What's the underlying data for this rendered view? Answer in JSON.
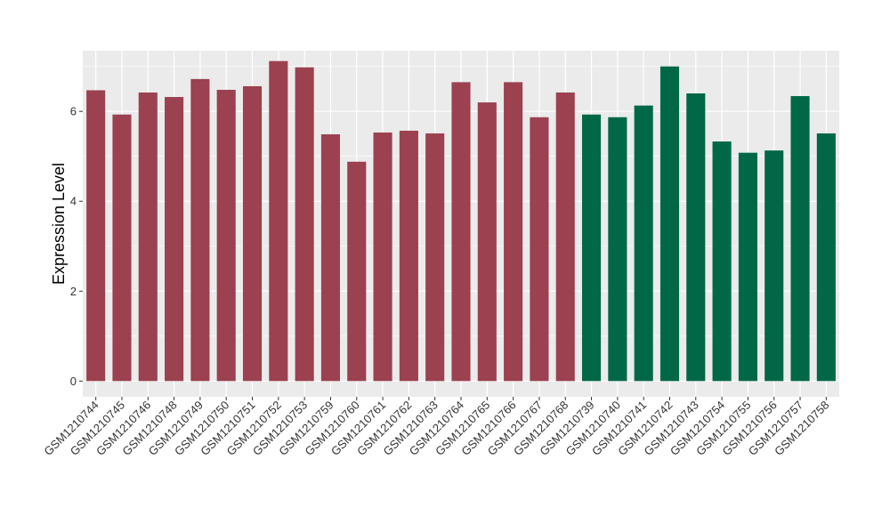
{
  "chart_data": {
    "type": "bar",
    "ylabel": "Expression Level",
    "xlabel": "",
    "ylim": [
      -0.35,
      7.35
    ],
    "yticks": [
      0,
      2,
      4,
      6
    ],
    "grid": true,
    "legend": "none",
    "colors": {
      "group_a": "#9b4150",
      "group_b": "#006847",
      "panel": "#ebebeb",
      "grid": "#ffffff"
    },
    "categories": [
      "GSM1210744",
      "GSM1210745",
      "GSM1210746",
      "GSM1210748",
      "GSM1210749",
      "GSM1210750",
      "GSM1210751",
      "GSM1210752",
      "GSM1210753",
      "GSM1210759",
      "GSM1210760",
      "GSM1210761",
      "GSM1210762",
      "GSM1210763",
      "GSM1210764",
      "GSM1210765",
      "GSM1210766",
      "GSM1210767",
      "GSM1210768",
      "GSM1210739",
      "GSM1210740",
      "GSM1210741",
      "GSM1210742",
      "GSM1210743",
      "GSM1210754",
      "GSM1210755",
      "GSM1210756",
      "GSM1210757",
      "GSM1210758"
    ],
    "values": [
      6.47,
      5.93,
      6.42,
      6.32,
      6.72,
      6.48,
      6.56,
      7.12,
      6.98,
      5.49,
      4.88,
      5.53,
      5.57,
      5.51,
      6.65,
      6.2,
      6.65,
      5.87,
      6.42,
      5.93,
      5.87,
      6.13,
      7.0,
      6.4,
      5.33,
      5.08,
      5.13,
      6.34,
      5.51
    ],
    "groups": [
      "a",
      "a",
      "a",
      "a",
      "a",
      "a",
      "a",
      "a",
      "a",
      "a",
      "a",
      "a",
      "a",
      "a",
      "a",
      "a",
      "a",
      "a",
      "a",
      "b",
      "b",
      "b",
      "b",
      "b",
      "b",
      "b",
      "b",
      "b",
      "b"
    ]
  }
}
